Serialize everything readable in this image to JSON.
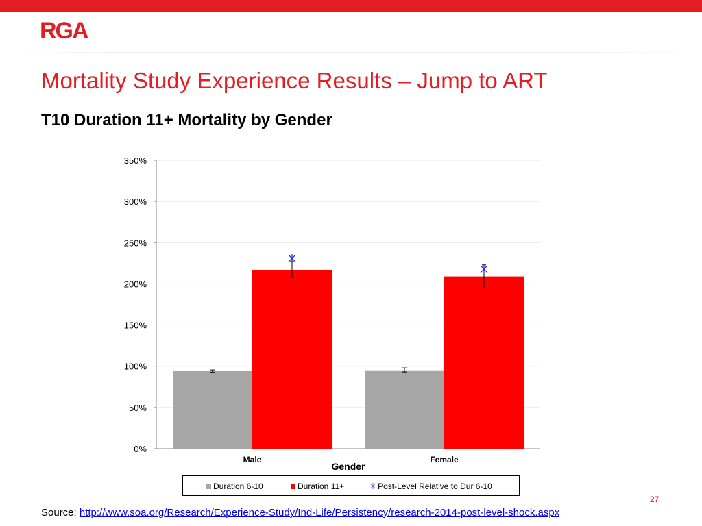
{
  "header": {
    "logo_text": "RGA",
    "title": "Mortality Study Experience Results – Jump to ART",
    "subtitle": "T10 Duration 11+ Mortality by Gender"
  },
  "colors": {
    "brand_red": "#e31d23",
    "duration_6_10": "#a6a6a6",
    "duration_11_plus": "#ff0000",
    "post_level_marker": "#1f1fd6"
  },
  "chart_data": {
    "type": "bar",
    "categories": [
      "Male",
      "Female"
    ],
    "xlabel": "Gender",
    "ylabel": "",
    "ylim": [
      0,
      350
    ],
    "yticks": [
      "0%",
      "50%",
      "100%",
      "150%",
      "200%",
      "250%",
      "300%",
      "350%"
    ],
    "ytick_values": [
      0,
      50,
      100,
      150,
      200,
      250,
      300,
      350
    ],
    "grid": true,
    "legend_position": "bottom",
    "series": [
      {
        "name": "Duration 6-10",
        "kind": "bar",
        "values": [
          94,
          95
        ],
        "error_low": [
          92.5,
          93
        ],
        "error_high": [
          95.5,
          98
        ]
      },
      {
        "name": "Duration 11+",
        "kind": "bar",
        "values": [
          217,
          209
        ],
        "error_low": [
          208,
          195
        ],
        "error_high": [
          227,
          223
        ]
      },
      {
        "name": "Post-Level Relative to Dur 6-10",
        "kind": "marker",
        "values": [
          231,
          218
        ]
      }
    ]
  },
  "footer": {
    "page_number": "27",
    "source_label": "Source: ",
    "source_link": "http://www.soa.org/Research/Experience-Study/Ind-Life/Persistency/research-2014-post-level-shock.aspx"
  }
}
